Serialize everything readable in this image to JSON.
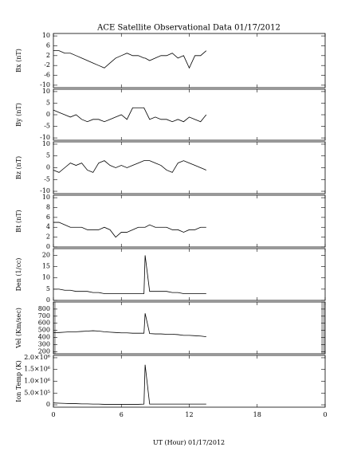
{
  "chart_data": [
    {
      "type": "line",
      "title": "ACE Satellite Observational Data   01/17/2012",
      "ylabel": "Bx (nT)",
      "x": [
        0,
        0.5,
        1,
        1.5,
        2,
        2.5,
        3,
        3.5,
        4,
        4.5,
        5,
        5.5,
        6,
        6.5,
        7,
        7.5,
        8,
        8.1,
        8.5,
        9,
        9.5,
        10,
        10.5,
        11,
        11.5,
        12,
        12.5,
        13,
        13.5
      ],
      "values": [
        4,
        4,
        3,
        3,
        2,
        1,
        0,
        -1,
        -2,
        -3,
        -1,
        1,
        2,
        3,
        2,
        2,
        1,
        1,
        0,
        1,
        2,
        2,
        3,
        1,
        2,
        -3,
        2,
        2,
        4
      ],
      "ylim": [
        -11,
        11
      ],
      "yticks": [
        -10,
        -6,
        -2,
        2,
        6,
        10
      ]
    },
    {
      "type": "line",
      "ylabel": "By (nT)",
      "x": [
        0,
        0.5,
        1,
        1.5,
        2,
        2.5,
        3,
        3.5,
        4,
        4.5,
        5,
        5.5,
        6,
        6.5,
        7,
        7.5,
        8,
        8.1,
        8.5,
        9,
        9.5,
        10,
        10.5,
        11,
        11.5,
        12,
        12.5,
        13,
        13.5
      ],
      "values": [
        2,
        1,
        0,
        -1,
        0,
        -2,
        -3,
        -2,
        -2,
        -3,
        -2,
        -1,
        0,
        -2,
        3,
        3,
        3,
        2,
        -2,
        -1,
        -2,
        -2,
        -3,
        -2,
        -3,
        -1,
        -2,
        -3,
        0
      ],
      "ylim": [
        -11,
        11
      ],
      "yticks": [
        -10,
        -5,
        0,
        5,
        10
      ]
    },
    {
      "type": "line",
      "ylabel": "Bz (nT)",
      "x": [
        0,
        0.5,
        1,
        1.5,
        2,
        2.5,
        3,
        3.5,
        4,
        4.5,
        5,
        5.5,
        6,
        6.5,
        7,
        7.5,
        8,
        8.1,
        8.5,
        9,
        9.5,
        10,
        10.5,
        11,
        11.5,
        12,
        12.5,
        13,
        13.5
      ],
      "values": [
        -1,
        -2,
        0,
        2,
        1,
        2,
        -1,
        -2,
        2,
        3,
        1,
        0,
        1,
        0,
        1,
        2,
        3,
        3,
        3,
        2,
        1,
        -1,
        -2,
        2,
        3,
        2,
        1,
        0,
        -1
      ],
      "ylim": [
        -11,
        11
      ],
      "yticks": [
        -10,
        -5,
        0,
        5,
        10
      ]
    },
    {
      "type": "line",
      "ylabel": "Bt (nT)",
      "x": [
        0,
        0.5,
        1,
        1.5,
        2,
        2.5,
        3,
        3.5,
        4,
        4.5,
        5,
        5.5,
        6,
        6.5,
        7,
        7.5,
        8,
        8.1,
        8.5,
        9,
        9.5,
        10,
        10.5,
        11,
        11.5,
        12,
        12.5,
        13,
        13.5
      ],
      "values": [
        5,
        5,
        4.5,
        4,
        4,
        4,
        3.5,
        3.5,
        3.5,
        4,
        3.5,
        2,
        3,
        3,
        3.5,
        4,
        4,
        4,
        4.5,
        4,
        4,
        4,
        3.5,
        3.5,
        3,
        3.5,
        3.5,
        4,
        4
      ],
      "ylim": [
        0,
        10.5
      ],
      "yticks": [
        0,
        2,
        4,
        6,
        8,
        10
      ]
    },
    {
      "type": "line",
      "ylabel": "Den (1/cc)",
      "x": [
        0,
        0.5,
        1,
        1.5,
        2,
        2.5,
        3,
        3.5,
        4,
        4.5,
        5,
        5.5,
        6,
        6.5,
        7,
        7.5,
        8,
        8.1,
        8.5,
        9,
        9.5,
        10,
        10.5,
        11,
        11.5,
        12,
        12.5,
        13,
        13.5
      ],
      "values": [
        5,
        5,
        4.5,
        4.5,
        4,
        4,
        4,
        3.5,
        3.5,
        3,
        3,
        3,
        3,
        3,
        3,
        3,
        3,
        20,
        4,
        4,
        4,
        4,
        3.5,
        3.5,
        3,
        3,
        3,
        3,
        3
      ],
      "ylim": [
        0,
        23
      ],
      "yticks": [
        0,
        5,
        10,
        15,
        20
      ]
    },
    {
      "type": "line",
      "ylabel": "Vel (Km/sec)",
      "x": [
        0,
        0.5,
        1,
        1.5,
        2,
        2.5,
        3,
        3.5,
        4,
        4.5,
        5,
        5.5,
        6,
        6.5,
        7,
        7.5,
        8,
        8.1,
        8.5,
        9,
        9.5,
        10,
        10.5,
        11,
        11.5,
        12,
        12.5,
        13,
        13.5
      ],
      "values": [
        470,
        470,
        475,
        480,
        480,
        485,
        490,
        495,
        490,
        480,
        475,
        470,
        465,
        465,
        460,
        460,
        460,
        740,
        455,
        450,
        450,
        445,
        445,
        440,
        430,
        430,
        425,
        420,
        410
      ],
      "ylim": [
        170,
        900
      ],
      "yticks": [
        200,
        300,
        400,
        500,
        600,
        700,
        800
      ]
    },
    {
      "type": "line",
      "ylabel": "Ion Temp (K)",
      "xlabel": "UT (Hour)  01/17/2012",
      "x": [
        0,
        0.5,
        1,
        1.5,
        2,
        2.5,
        3,
        3.5,
        4,
        4.5,
        5,
        5.5,
        6,
        6.5,
        7,
        7.5,
        8,
        8.1,
        8.5,
        9,
        9.5,
        10,
        10.5,
        11,
        11.5,
        12,
        12.5,
        13,
        13.5
      ],
      "values": [
        80000,
        70000,
        60000,
        50000,
        50000,
        40000,
        40000,
        30000,
        30000,
        20000,
        20000,
        20000,
        20000,
        20000,
        20000,
        20000,
        30000,
        1700000,
        30000,
        30000,
        30000,
        30000,
        30000,
        30000,
        30000,
        30000,
        30000,
        30000,
        30000
      ],
      "ylim": [
        -100000,
        2100000
      ],
      "yticks": [
        0,
        {
          "value": 500000,
          "label": "5.0×10⁵"
        },
        {
          "value": 1000000,
          "label": "1.0×10⁶"
        },
        {
          "value": 1500000,
          "label": "1.5×10⁶"
        },
        {
          "value": 2000000,
          "label": "2.0×10⁶"
        }
      ],
      "xlim": [
        0,
        24
      ],
      "xticks": [
        0,
        6,
        12,
        18,
        {
          "value": 24,
          "label": "0"
        }
      ]
    }
  ]
}
